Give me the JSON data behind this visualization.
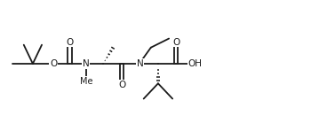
{
  "bg_color": "#ffffff",
  "line_color": "#1a1a1a",
  "line_width": 1.3,
  "fig_width": 3.68,
  "fig_height": 1.48,
  "dpi": 100,
  "font_size": 7.5,
  "font_family": "DejaVu Sans",
  "xlim": [
    0,
    36
  ],
  "ylim": [
    0,
    14
  ]
}
